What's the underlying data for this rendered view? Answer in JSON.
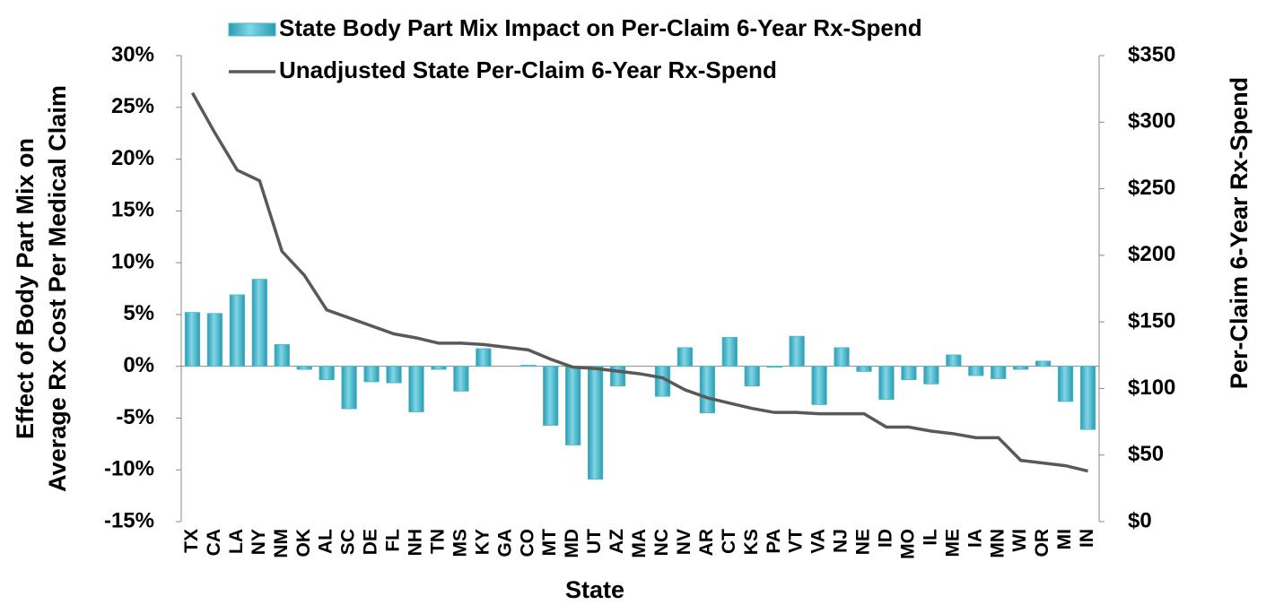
{
  "chart_data": {
    "type": "bar_line",
    "x_label": "State",
    "y_label": [
      "Effect of Body Part Mix on",
      "Average Rx Cost Per Medical Claim"
    ],
    "y2_label": "Per-Claim 6-Year Rx-Spend",
    "categories": [
      "TX",
      "CA",
      "LA",
      "NY",
      "NM",
      "OK",
      "AL",
      "SC",
      "DE",
      "FL",
      "NH",
      "TN",
      "MS",
      "KY",
      "GA",
      "CO",
      "MT",
      "MD",
      "UT",
      "AZ",
      "MA",
      "NC",
      "NV",
      "AR",
      "CT",
      "KS",
      "PA",
      "VT",
      "VA",
      "NJ",
      "NE",
      "ID",
      "MO",
      "IL",
      "ME",
      "IA",
      "MN",
      "WI",
      "OR",
      "MI",
      "IN"
    ],
    "series": [
      {
        "name": "State Body Part Mix Impact on Per-Claim 6-Year Rx-Spend",
        "type": "bar",
        "color": "#4bb8cc",
        "values": [
          5.2,
          5.1,
          6.9,
          8.4,
          2.1,
          -0.3,
          -1.3,
          -4.1,
          -1.5,
          -1.6,
          -4.4,
          -0.3,
          -2.4,
          1.7,
          0,
          0.1,
          -5.7,
          -7.6,
          -10.9,
          -1.9,
          0,
          -2.9,
          1.8,
          -4.5,
          2.8,
          -1.9,
          -0.1,
          2.9,
          -3.7,
          1.8,
          -0.5,
          -3.2,
          -1.3,
          -1.7,
          1.1,
          -0.9,
          -1.2,
          -0.3,
          0.5,
          -3.4,
          -6.1
        ]
      },
      {
        "name": "Unadjusted State Per-Claim 6-Year Rx-Spend",
        "type": "line",
        "axis": "y2",
        "color": "#595959",
        "values": [
          322,
          292,
          264,
          256,
          203,
          185,
          159,
          153,
          147,
          141,
          138,
          134,
          134,
          133,
          131,
          129,
          122,
          116,
          115,
          113,
          111,
          108,
          99,
          93,
          89,
          85,
          82,
          82,
          81,
          81,
          81,
          71,
          71,
          68,
          66,
          63,
          63,
          46,
          44,
          42,
          38
        ]
      }
    ],
    "ylim": [
      -15,
      30
    ],
    "yticks": [
      {
        "value": -15,
        "label": "-15%"
      },
      {
        "value": -10,
        "label": "-10%"
      },
      {
        "value": -5,
        "label": "-5%"
      },
      {
        "value": 0,
        "label": "0%"
      },
      {
        "value": 5,
        "label": "5%"
      },
      {
        "value": 10,
        "label": "10%"
      },
      {
        "value": 15,
        "label": "15%"
      },
      {
        "value": 20,
        "label": "20%"
      },
      {
        "value": 25,
        "label": "25%"
      },
      {
        "value": 30,
        "label": "30%"
      }
    ],
    "y2lim": [
      0,
      350
    ],
    "y2ticks": [
      {
        "value": 0,
        "label": "$0"
      },
      {
        "value": 50,
        "label": "$50"
      },
      {
        "value": 100,
        "label": "$100"
      },
      {
        "value": 150,
        "label": "$150"
      },
      {
        "value": 200,
        "label": "$200"
      },
      {
        "value": 250,
        "label": "$250"
      },
      {
        "value": 300,
        "label": "$300"
      },
      {
        "value": 350,
        "label": "$350"
      }
    ]
  }
}
